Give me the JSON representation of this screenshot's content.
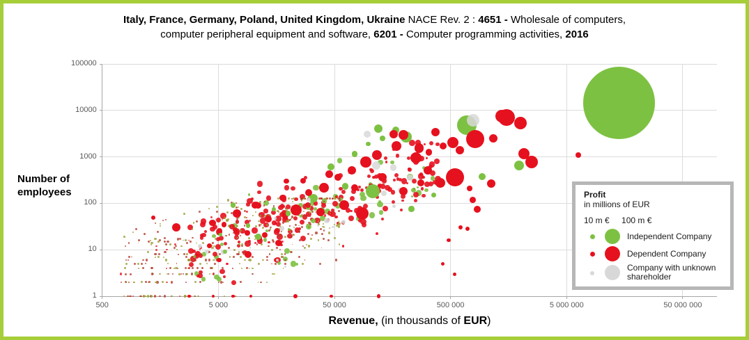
{
  "colors": {
    "independent": "#7DC142",
    "dependent": "#E6111E",
    "unknown": "#D8D8D8",
    "darkred": "#B5392B",
    "olive": "#9A9B31",
    "frame": "#A6CE39",
    "grid": "#DCDCDC",
    "axis": "#A6A6A6",
    "tick_text": "#595959",
    "legend_border": "#B7B7B7"
  },
  "title": {
    "segments": [
      {
        "text": "Italy, France, Germany, Poland, United Kingdom, Ukraine",
        "bold": true
      },
      {
        "text": " NACE Rev. 2 : ",
        "bold": false
      },
      {
        "text": "4651 -",
        "bold": true
      },
      {
        "text": " Wholesale of computers,",
        "bold": false
      },
      {
        "br": true
      },
      {
        "text": "computer peripheral equipment and software, ",
        "bold": false
      },
      {
        "text": "6201 -",
        "bold": true
      },
      {
        "text": " Computer programming activities,  ",
        "bold": false
      },
      {
        "text": "2016",
        "bold": true
      }
    ]
  },
  "axes": {
    "y_title_line1": "Number  of",
    "y_title_line2": "employees",
    "x_title_segments": [
      {
        "text": "Revenue,",
        "bold": true
      },
      {
        "text": " (in thousands of ",
        "bold": false
      },
      {
        "text": "EUR",
        "bold": true
      },
      {
        "text": ")",
        "bold": false
      }
    ]
  },
  "legend": {
    "title": "Profit",
    "subtitle": "in millions of EUR",
    "size_labels": [
      "10 m €",
      "100 m €"
    ],
    "entries": [
      {
        "label": "Independent Company",
        "color": "#7DC142"
      },
      {
        "label": "Dependent Company",
        "color": "#E6111E"
      },
      {
        "label": "Company with unknown shareholder",
        "color": "#D8D8D8"
      }
    ]
  },
  "chart_data": {
    "type": "scatter",
    "subtype": "bubble",
    "title": "Italy, France, Germany, Poland, United Kingdom, Ukraine NACE Rev. 2 : 4651 - Wholesale of computers, computer peripheral equipment and software, 6201 - Computer programming activities, 2016",
    "x_axis": {
      "label": "Revenue, (in thousands of EUR)",
      "scale": "log",
      "min": 500,
      "max": 50000000,
      "ticks": [
        "500",
        "5 000",
        "50 000",
        "500 000",
        "5 000 000",
        "50 000 000"
      ],
      "tick_values": [
        500,
        5000,
        50000,
        500000,
        5000000,
        50000000
      ]
    },
    "y_axis": {
      "label": "Number of employees",
      "scale": "log",
      "min": 1,
      "max": 100000,
      "ticks": [
        "1",
        "10",
        "100",
        "1000",
        "10000",
        "100000"
      ],
      "tick_values": [
        1,
        10,
        100,
        1000,
        10000,
        100000
      ]
    },
    "size_encoding": {
      "field": "profit_millions_eur",
      "reference_sizes": [
        {
          "label": "10 m €",
          "profit": 10
        },
        {
          "label": "100 m €",
          "profit": 100
        }
      ]
    },
    "point_format": [
      "revenue_thousands_eur",
      "employees",
      "profit_millions_eur"
    ],
    "series": [
      {
        "name": "Independent Company",
        "color": "#7DC142",
        "points": [
          [
            14100000,
            14500,
            2200
          ],
          [
            692000,
            4810,
            160
          ],
          [
            120000,
            4060,
            30
          ],
          [
            169000,
            3780,
            22
          ],
          [
            208000,
            2680,
            50
          ],
          [
            130000,
            2500,
            12
          ],
          [
            98000,
            1900,
            10
          ],
          [
            75000,
            1150,
            14
          ],
          [
            1950000,
            652,
            40
          ],
          [
            938000,
            376,
            20
          ],
          [
            46500,
            610,
            20
          ],
          [
            107000,
            182,
            90
          ],
          [
            62000,
            235,
            20
          ],
          [
            230000,
            75,
            15
          ],
          [
            33000,
            128,
            30
          ],
          [
            20000,
            60,
            12
          ],
          [
            15000,
            75,
            7
          ],
          [
            9000,
            33,
            8
          ],
          [
            5200,
            21,
            5
          ],
          [
            11000,
            19,
            15
          ],
          [
            6700,
            91,
            12
          ],
          [
            360000,
            150,
            10
          ]
        ]
      },
      {
        "name": "Dependent Company",
        "color": "#E6111E",
        "points": [
          [
            1520000,
            7030,
            120
          ],
          [
            1380000,
            7530,
            67
          ],
          [
            2005000,
            5330,
            67
          ],
          [
            816000,
            2416,
            140
          ],
          [
            1170000,
            2500,
            30
          ],
          [
            2150000,
            1172,
            53
          ],
          [
            2500000,
            775,
            67
          ],
          [
            6300000,
            1094,
            13
          ],
          [
            547000,
            363,
            140
          ],
          [
            525000,
            2030,
            53
          ],
          [
            603000,
            1390,
            30
          ],
          [
            371000,
            3410,
            30
          ],
          [
            430000,
            1710,
            20
          ],
          [
            325000,
            1250,
            20
          ],
          [
            268000,
            1550,
            40
          ],
          [
            196000,
            2950,
            40
          ],
          [
            162000,
            3080,
            30
          ],
          [
            252000,
            950,
            53
          ],
          [
            170000,
            1720,
            40
          ],
          [
            116000,
            1090,
            40
          ],
          [
            93000,
            775,
            50
          ],
          [
            70500,
            517,
            30
          ],
          [
            53400,
            363,
            20
          ],
          [
            40500,
            216,
            40
          ],
          [
            26800,
            305,
            13
          ],
          [
            19200,
            300,
            12
          ],
          [
            75000,
            216,
            20
          ],
          [
            37700,
            65,
            30
          ],
          [
            61000,
            91,
            40
          ],
          [
            87000,
            60,
            67
          ],
          [
            23300,
            71,
            53
          ],
          [
            130000,
            360,
            30
          ],
          [
            320000,
            510,
            30
          ],
          [
            410000,
            275,
            40
          ],
          [
            278000,
            275,
            20
          ],
          [
            196000,
            182,
            30
          ],
          [
            1120000,
            266,
            30
          ],
          [
            730000,
            210,
            12
          ],
          [
            780000,
            120,
            16
          ],
          [
            850000,
            74,
            20
          ],
          [
            2160,
            30,
            30
          ],
          [
            13400,
            46,
            20
          ],
          [
            12500,
            21,
            13
          ],
          [
            8900,
            23,
            13
          ],
          [
            16500,
            14,
            20
          ],
          [
            9000,
            8,
            20
          ],
          [
            7250,
            60,
            30
          ],
          [
            4450,
            38,
            20
          ],
          [
            10300,
            91,
            20
          ],
          [
            5100,
            6,
            10
          ],
          [
            4200,
            12,
            10
          ],
          [
            5600,
            35,
            12
          ],
          [
            11000,
            90,
            16
          ],
          [
            18000,
            130,
            18
          ],
          [
            30000,
            170,
            22
          ],
          [
            45000,
            420,
            26
          ],
          [
            1370,
            49,
            7
          ],
          [
            23000,
            1,
            7
          ],
          [
            2800,
            1,
            4
          ],
          [
            4500,
            1,
            4
          ],
          [
            6700,
            1,
            5
          ],
          [
            9500,
            1,
            4
          ],
          [
            47000,
            1,
            5
          ],
          [
            120000,
            1,
            6
          ],
          [
            430000,
            5,
            6
          ],
          [
            540000,
            3,
            5
          ],
          [
            480000,
            16,
            7
          ],
          [
            700000,
            28,
            8
          ],
          [
            610000,
            30,
            8
          ]
        ]
      },
      {
        "name": "Company with unknown shareholder",
        "color": "#D8D8D8",
        "opacity": 0.85,
        "points": [
          [
            783000,
            6120,
            67
          ],
          [
            96000,
            3070,
            22
          ],
          [
            115000,
            651,
            30
          ],
          [
            160000,
            590,
            18
          ],
          [
            223000,
            360,
            18
          ],
          [
            30000,
            120,
            8
          ],
          [
            60000,
            40,
            9
          ]
        ]
      }
    ],
    "background_cloud": {
      "seed": 7,
      "tiers": [
        {
          "name": "mid",
          "count": 280,
          "log_rev_min": 3.45,
          "log_rev_max": 5.6,
          "slope": 0.88,
          "intercept": 1.15,
          "noise": 0.42,
          "emp_log_min": 0,
          "emp_log_max": 3.3,
          "profit_min": 2,
          "profit_max": 16,
          "opacity": 0.9,
          "colors": {
            "dependent": 0.74,
            "independent": 0.2,
            "unknown": 0.06
          }
        },
        {
          "name": "tiny",
          "count": 450,
          "log_rev_min": 2.85,
          "log_rev_max": 4.75,
          "slope": 0.78,
          "intercept": 1.05,
          "noise": 0.5,
          "emp_log_min": 0,
          "emp_log_max": 2.1,
          "profit_min": 0.5,
          "profit_max": 2.5,
          "opacity": 0.8,
          "integer_emp_below": 30,
          "colors": {
            "darkred": 0.5,
            "olive": 0.44,
            "dependent": 0.06
          }
        }
      ]
    }
  }
}
